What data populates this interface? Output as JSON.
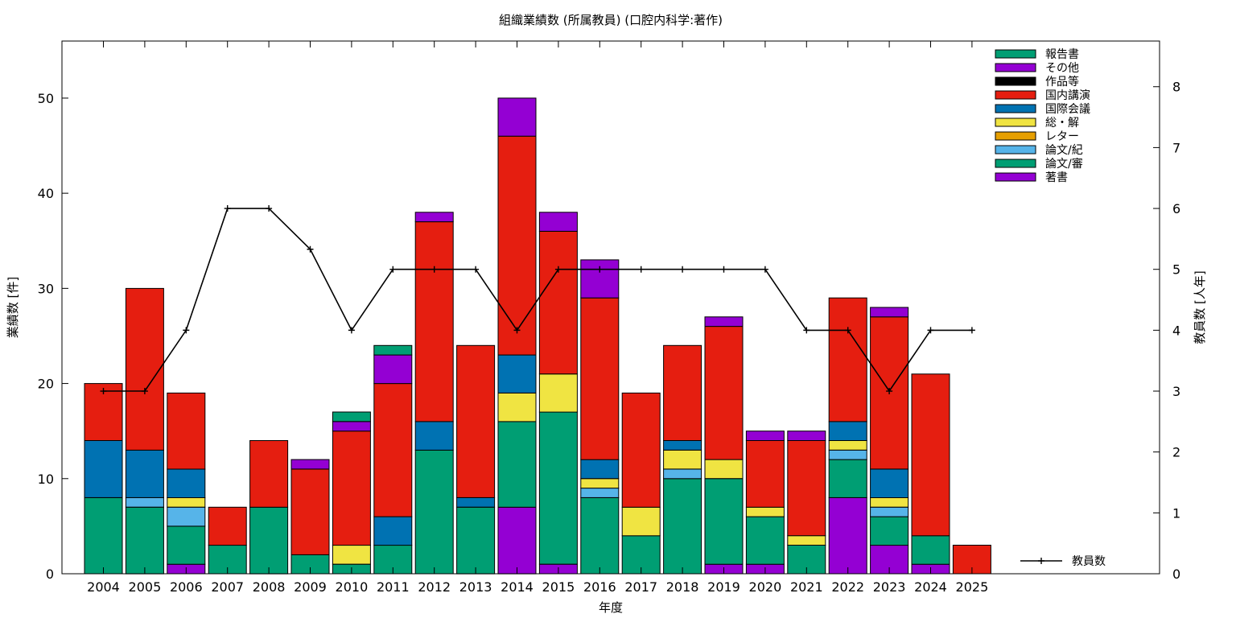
{
  "chart_data": {
    "type": "bar",
    "stacked": true,
    "title": "組織業績数 (所属教員) (口腔内科学:著作)",
    "xlabel": "年度",
    "ylabel": "業績数 [件]",
    "y2label": "教員数 [人年]",
    "ylim": [
      0,
      56
    ],
    "y2lim": [
      0,
      8.75
    ],
    "yticks": [
      0,
      10,
      20,
      30,
      40,
      50
    ],
    "y2ticks": [
      0,
      1,
      2,
      3,
      4,
      5,
      6,
      7,
      8
    ],
    "categories": [
      "2004",
      "2005",
      "2006",
      "2007",
      "2008",
      "2009",
      "2010",
      "2011",
      "2012",
      "2013",
      "2014",
      "2015",
      "2016",
      "2017",
      "2018",
      "2019",
      "2020",
      "2021",
      "2022",
      "2023",
      "2024",
      "2025"
    ],
    "legend_position": "top-right",
    "series": [
      {
        "name": "著書",
        "color": "#9400d3",
        "values": [
          0,
          0,
          1,
          0,
          0,
          0,
          0,
          0,
          0,
          0,
          7,
          1,
          0,
          0,
          0,
          1,
          1,
          0,
          8,
          3,
          1,
          0
        ]
      },
      {
        "name": "論文/審",
        "color": "#009e73",
        "values": [
          8,
          7,
          4,
          3,
          7,
          2,
          1,
          3,
          13,
          7,
          9,
          16,
          8,
          4,
          10,
          9,
          5,
          3,
          4,
          3,
          3,
          0
        ]
      },
      {
        "name": "論文/紀",
        "color": "#56b4e9",
        "values": [
          0,
          1,
          2,
          0,
          0,
          0,
          0,
          0,
          0,
          0,
          0,
          0,
          1,
          0,
          1,
          0,
          0,
          0,
          1,
          1,
          0,
          0
        ]
      },
      {
        "name": "レター",
        "color": "#e69f00",
        "values": [
          0,
          0,
          0,
          0,
          0,
          0,
          0,
          0,
          0,
          0,
          0,
          0,
          0,
          0,
          0,
          0,
          0,
          0,
          0,
          0,
          0,
          0
        ]
      },
      {
        "name": "総・解",
        "color": "#f0e442",
        "values": [
          0,
          0,
          1,
          0,
          0,
          0,
          2,
          0,
          0,
          0,
          3,
          4,
          1,
          3,
          2,
          2,
          1,
          1,
          1,
          1,
          0,
          0
        ]
      },
      {
        "name": "国際会議",
        "color": "#0072b2",
        "values": [
          6,
          5,
          3,
          0,
          0,
          0,
          0,
          3,
          3,
          1,
          4,
          0,
          2,
          0,
          1,
          0,
          0,
          0,
          2,
          3,
          0,
          0
        ]
      },
      {
        "name": "国内講演",
        "color": "#e51e10",
        "values": [
          6,
          17,
          8,
          4,
          7,
          9,
          12,
          14,
          21,
          16,
          23,
          15,
          17,
          12,
          10,
          14,
          7,
          10,
          13,
          16,
          17,
          3
        ]
      },
      {
        "name": "作品等",
        "color": "#000000",
        "values": [
          0,
          0,
          0,
          0,
          0,
          0,
          0,
          0,
          0,
          0,
          0,
          0,
          0,
          0,
          0,
          0,
          0,
          0,
          0,
          0,
          0,
          0
        ]
      },
      {
        "name": "その他",
        "color": "#9400d3",
        "values": [
          0,
          0,
          0,
          0,
          0,
          1,
          1,
          3,
          1,
          0,
          4,
          2,
          4,
          0,
          0,
          1,
          1,
          1,
          0,
          1,
          0,
          0
        ]
      },
      {
        "name": "報告書",
        "color": "#009e73",
        "values": [
          0,
          0,
          0,
          0,
          0,
          0,
          1,
          1,
          0,
          0,
          0,
          0,
          0,
          0,
          0,
          0,
          0,
          0,
          0,
          0,
          0,
          0
        ]
      }
    ],
    "line_series": {
      "name": "教員数",
      "color": "#000000",
      "axis": "y2",
      "values": [
        3,
        3,
        4,
        6,
        6,
        5.33,
        4,
        5,
        5,
        5,
        4,
        5,
        5,
        5,
        5,
        5,
        5,
        4,
        4,
        3,
        4,
        4
      ]
    }
  }
}
